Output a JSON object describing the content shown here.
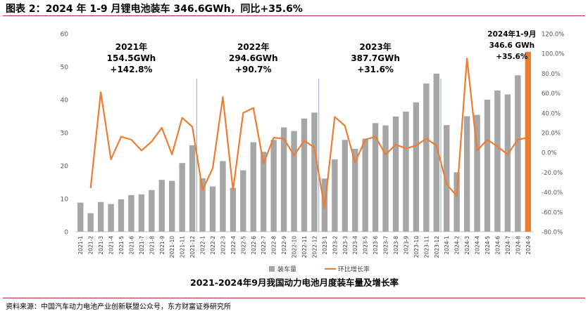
{
  "header": {
    "title": "图表 2：2024 年 1-9 月锂电池装车 346.6GWh，同比+35.6%"
  },
  "footer": {
    "source": "资料来源：中国汽车动力电池产业创新联盟公众号，东方财富证券研究所"
  },
  "colors": {
    "bar": "#a6a6a6",
    "bar_highlight": "#ed7d31",
    "line": "#ed7d31",
    "divider": "#8fa8c8",
    "axis": "#bfbfbf"
  },
  "chart_data": {
    "type": "bar",
    "title": "2021-2024年9月我国动力电池月度装车量及增长率",
    "categories": [
      "2021-1",
      "2021-2",
      "2021-3",
      "2021-4",
      "2021-5",
      "2021-6",
      "2021-7",
      "2021-8",
      "2021-9",
      "2021-10",
      "2021-11",
      "2021-12",
      "2022-1",
      "2022-2",
      "2022-3",
      "2022-4",
      "2022-5",
      "2022-6",
      "2022-7",
      "2022-8",
      "2022-9",
      "2022-10",
      "2022-11",
      "2022-12",
      "2023-1",
      "2023-2",
      "2023-3",
      "2023-4",
      "2023-5",
      "2023-6",
      "2023-7",
      "2023-8",
      "2023-9",
      "2023-10",
      "2023-11",
      "2023-12",
      "2024-1",
      "2024-2",
      "2024-3",
      "2024-4",
      "2024-5",
      "2024-6",
      "2024-7",
      "2024-8",
      "2024-9"
    ],
    "series": [
      {
        "name": "装车量",
        "axis": "left",
        "values": [
          8.8,
          5.6,
          9.0,
          8.4,
          9.8,
          11.1,
          11.3,
          12.6,
          15.7,
          15.4,
          20.8,
          26.2,
          16.2,
          13.7,
          21.4,
          13.3,
          18.6,
          27.1,
          24.2,
          27.8,
          31.6,
          30.5,
          34.3,
          36.1,
          16.1,
          21.9,
          27.8,
          25.1,
          28.2,
          32.9,
          32.2,
          34.9,
          36.4,
          39.2,
          44.9,
          47.9,
          32.3,
          18.0,
          35.0,
          35.4,
          40.0,
          42.8,
          41.6,
          47.4,
          54.5
        ],
        "highlight_index": 44
      },
      {
        "name": "环比增长率",
        "axis": "right",
        "unit": "%",
        "values": [
          null,
          -36,
          61,
          -7,
          16,
          13,
          2,
          11,
          25,
          -2,
          35,
          26,
          -38,
          -16,
          56,
          -38,
          40,
          45,
          -11,
          15,
          14,
          -3,
          12,
          5,
          -56,
          36,
          27,
          -10,
          13,
          16,
          -2,
          8,
          4,
          7,
          14,
          7,
          -32,
          -44,
          95,
          2,
          13,
          6,
          -2,
          13,
          15
        ]
      }
    ],
    "left_axis": {
      "ylim": [
        0,
        60
      ],
      "ticks": [
        0,
        10,
        20,
        30,
        40,
        50,
        60
      ]
    },
    "right_axis": {
      "ylim": [
        -80,
        120
      ],
      "ticks": [
        "-80.0%",
        "-60.0%",
        "-40.0%",
        "-20.0%",
        "0.0%",
        "20.0%",
        "40.0%",
        "60.0%",
        "80.0%",
        "100.0%",
        "120.0%"
      ]
    },
    "dividers_after": [
      "2021-12",
      "2022-12",
      "2023-12"
    ],
    "annotations": [
      {
        "at": "2021-6",
        "lines": [
          "2021年",
          "154.5GWh",
          "+142.8%"
        ]
      },
      {
        "at": "2022-6",
        "lines": [
          "2022年",
          "294.6GWh",
          "+90.7%"
        ]
      },
      {
        "at": "2023-6",
        "lines": [
          "2023年",
          "387.7GWh",
          "+31.6%"
        ]
      },
      {
        "at": "2024-7",
        "lines": [
          "2024年1-9月",
          "346.6 GWh",
          "+35.6%"
        ]
      }
    ],
    "legend": {
      "position": "bottom",
      "items": [
        "装车量",
        "环比增长率"
      ]
    },
    "grid": false
  }
}
